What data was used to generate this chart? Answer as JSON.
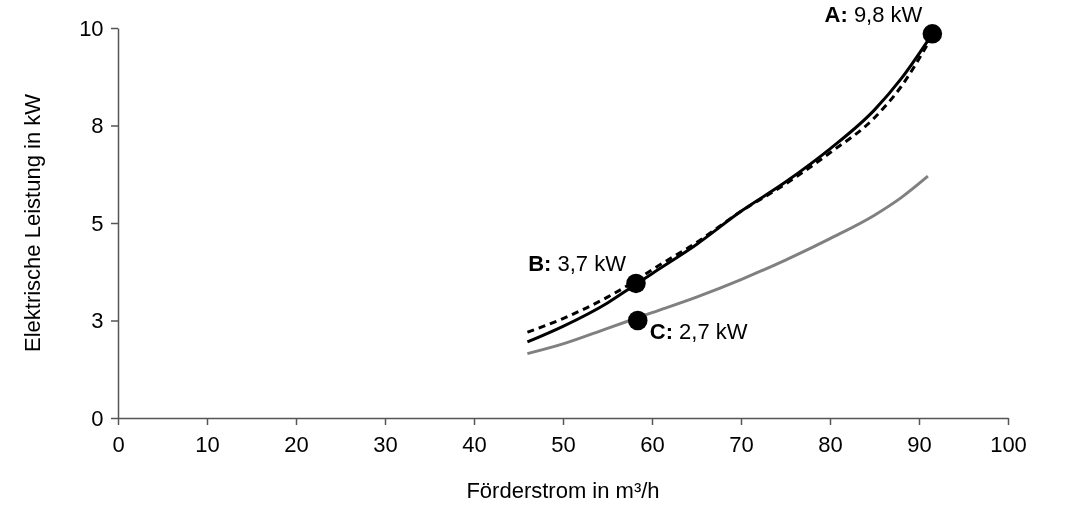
{
  "chart_data": {
    "type": "line",
    "xlabel": "Förderstrom in m³/h",
    "ylabel": "Elektrische Leistung in kW",
    "xlim": [
      0,
      100
    ],
    "xticks": [
      0,
      10,
      20,
      30,
      40,
      50,
      60,
      70,
      80,
      90,
      100
    ],
    "ylim": [
      0,
      10
    ],
    "yticks": [
      0,
      {
        "value": 2.5,
        "label": "3"
      },
      5,
      {
        "value": 7.5,
        "label": "8"
      },
      10
    ],
    "marker": "none",
    "series": [
      {
        "color": "#000000",
        "line_style": "solid",
        "x": [
          46,
          50,
          55,
          58,
          60,
          65,
          70,
          75,
          80,
          85,
          88,
          91.5
        ],
        "values": [
          1.95,
          2.35,
          2.95,
          3.4,
          3.7,
          4.45,
          5.3,
          6.05,
          6.9,
          7.9,
          8.7,
          9.85
        ]
      },
      {
        "color": "#000000",
        "line_style": "dashed",
        "x": [
          46,
          50,
          55,
          58,
          60,
          65,
          70,
          75,
          80,
          85,
          88,
          91.5
        ],
        "values": [
          2.2,
          2.55,
          3.1,
          3.5,
          3.8,
          4.5,
          5.3,
          6.0,
          6.8,
          7.7,
          8.5,
          9.8
        ]
      },
      {
        "color": "#808080",
        "line_style": "solid",
        "x": [
          46,
          50,
          55,
          60,
          65,
          70,
          75,
          80,
          85,
          88,
          91
        ],
        "values": [
          1.65,
          1.9,
          2.3,
          2.7,
          3.1,
          3.55,
          4.05,
          4.6,
          5.2,
          5.65,
          6.2
        ]
      },
      {
        "type": "scatter",
        "marker": "circle",
        "color": "#000000",
        "x": [
          91.5,
          58.2,
          58.4
        ],
        "values": [
          9.85,
          3.45,
          2.5
        ]
      }
    ],
    "annotations": [
      {
        "text": "A: 9,8 kW",
        "x": 91.5,
        "y": 9.85
      },
      {
        "text": "B: 3,7 kW",
        "x": 58.2,
        "y": 3.45
      },
      {
        "text": "C: 2,7 kW",
        "x": 58.4,
        "y": 2.5
      }
    ]
  }
}
